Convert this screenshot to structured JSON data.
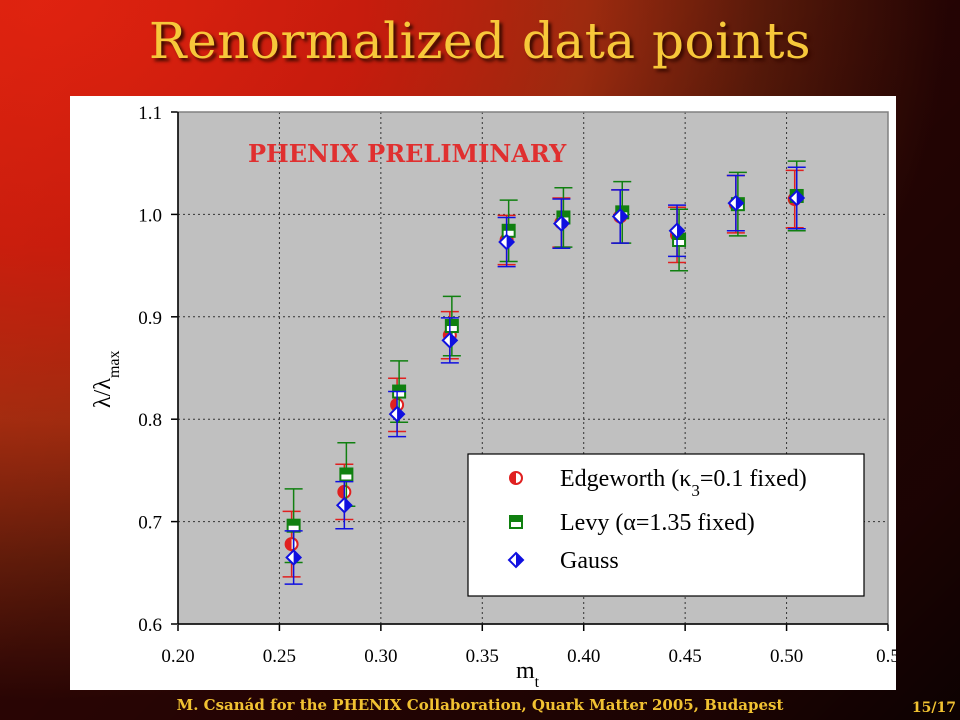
{
  "slide": {
    "title": "Renormalized data points",
    "footer": "M. Csanád for the PHENIX Collaboration, Quark Matter 2005, Budapest",
    "page": "15/17"
  },
  "colors": {
    "title": "#f7c83a",
    "plot_bg": "#c0c0c0",
    "edgeworth": "#e02020",
    "levy": "#108010",
    "gauss": "#1010e0",
    "annotation": "#e03030"
  },
  "chart_data": {
    "type": "scatter",
    "annotation": "PHENIX PRELIMINARY",
    "xlabel": "m",
    "xlabel_sub": "t",
    "ylabel": "λ/λ",
    "ylabel_sub": "max",
    "xlim": [
      0.2,
      0.55
    ],
    "ylim": [
      0.6,
      1.1
    ],
    "xticks": [
      "0.20",
      "0.25",
      "0.30",
      "0.35",
      "0.40",
      "0.45",
      "0.50",
      "0.5"
    ],
    "yticks": [
      "0.6",
      "0.7",
      "0.8",
      "0.9",
      "1.0",
      "1.1"
    ],
    "grid": true,
    "legend_position": "bottom-right",
    "series": [
      {
        "name": "Edgeworth",
        "legend_label": "Edgeworth (κ",
        "legend_sub": "3",
        "legend_rest": "=0.1 fixed)",
        "marker": "half-circle",
        "x": [
          0.256,
          0.282,
          0.308,
          0.334,
          0.362,
          0.389,
          0.418,
          0.446,
          0.475,
          0.504
        ],
        "y": [
          0.678,
          0.729,
          0.814,
          0.882,
          0.975,
          0.992,
          0.998,
          0.98,
          1.01,
          1.015
        ],
        "err": [
          0.032,
          0.027,
          0.026,
          0.023,
          0.024,
          0.024,
          0.026,
          0.027,
          0.028,
          0.028
        ]
      },
      {
        "name": "Levy",
        "legend_label": "Levy (α=1.35 fixed)",
        "marker": "half-square",
        "x": [
          0.257,
          0.283,
          0.309,
          0.335,
          0.363,
          0.39,
          0.419,
          0.447,
          0.476,
          0.505
        ],
        "y": [
          0.696,
          0.746,
          0.827,
          0.891,
          0.984,
          0.997,
          1.002,
          0.975,
          1.01,
          1.018
        ],
        "err": [
          0.036,
          0.031,
          0.03,
          0.029,
          0.03,
          0.029,
          0.03,
          0.03,
          0.031,
          0.034
        ]
      },
      {
        "name": "Gauss",
        "legend_label": "Gauss",
        "marker": "half-diamond",
        "x": [
          0.257,
          0.282,
          0.308,
          0.334,
          0.362,
          0.389,
          0.418,
          0.446,
          0.475,
          0.505
        ],
        "y": [
          0.665,
          0.716,
          0.805,
          0.877,
          0.973,
          0.991,
          0.998,
          0.984,
          1.011,
          1.016
        ],
        "err": [
          0.026,
          0.023,
          0.022,
          0.022,
          0.024,
          0.024,
          0.026,
          0.025,
          0.027,
          0.03
        ]
      }
    ]
  }
}
